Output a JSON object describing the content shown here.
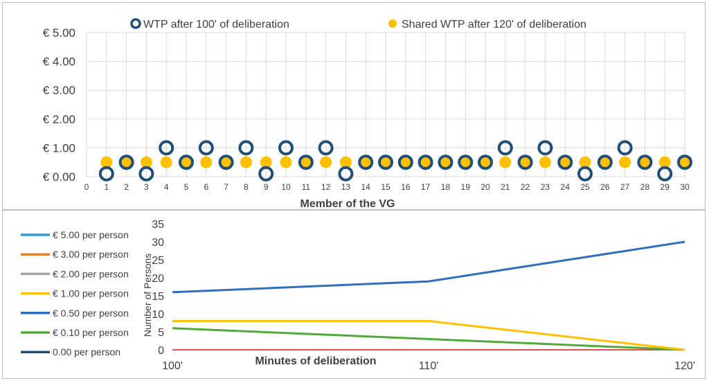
{
  "colors": {
    "wtp_individual": "#1f4e79",
    "wtp_shared": "#ffc000",
    "line_5_00": "#2e9bd6",
    "line_3_00": "#ed7d31",
    "line_2_00": "#a5a5a5",
    "line_1_00": "#ffc000",
    "line_0_50": "#2f6ebf",
    "line_0_10": "#4faa3a",
    "line_0_00": "#1f4e79",
    "axis_zero_line": "#e03030",
    "grid": "#d9d9d9"
  },
  "chart_data": [
    {
      "type": "scatter",
      "xlabel": "Member of the VG",
      "ylabel": "",
      "xlim": [
        0,
        30
      ],
      "ylim": [
        0,
        5
      ],
      "x_ticks": [
        "0",
        "1",
        "2",
        "3",
        "4",
        "5",
        "6",
        "7",
        "8",
        "9",
        "10",
        "11",
        "12",
        "13",
        "14",
        "15",
        "16",
        "17",
        "18",
        "19",
        "20",
        "21",
        "22",
        "23",
        "24",
        "25",
        "26",
        "27",
        "28",
        "29",
        "30"
      ],
      "y_ticks": [
        "€ 0.00",
        "€ 1.00",
        "€ 2.00",
        "€ 3.00",
        "€ 4.00",
        "€ 5.00"
      ],
      "y_tick_values": [
        0,
        1,
        2,
        3,
        4,
        5
      ],
      "grid": true,
      "legend_position": "top",
      "series": [
        {
          "name": "WTP after 100' of deliberation",
          "marker": "hollow-circle",
          "x": [
            1,
            2,
            3,
            4,
            5,
            6,
            7,
            8,
            9,
            10,
            11,
            12,
            13,
            14,
            15,
            16,
            17,
            18,
            19,
            20,
            21,
            22,
            23,
            24,
            25,
            26,
            27,
            28,
            29,
            30
          ],
          "values": [
            0.1,
            0.5,
            0.1,
            1.0,
            0.5,
            1.0,
            0.5,
            1.0,
            0.1,
            1.0,
            0.5,
            1.0,
            0.1,
            0.5,
            0.5,
            0.5,
            0.5,
            0.5,
            0.5,
            0.5,
            1.0,
            0.5,
            1.0,
            0.5,
            0.1,
            0.5,
            1.0,
            0.5,
            0.1,
            0.5
          ]
        },
        {
          "name": "Shared WTP after 120' of deliberation",
          "marker": "filled-circle",
          "x": [
            1,
            2,
            3,
            4,
            5,
            6,
            7,
            8,
            9,
            10,
            11,
            12,
            13,
            14,
            15,
            16,
            17,
            18,
            19,
            20,
            21,
            22,
            23,
            24,
            25,
            26,
            27,
            28,
            29,
            30
          ],
          "values": [
            0.5,
            0.5,
            0.5,
            0.5,
            0.5,
            0.5,
            0.5,
            0.5,
            0.5,
            0.5,
            0.5,
            0.5,
            0.5,
            0.5,
            0.5,
            0.5,
            0.5,
            0.5,
            0.5,
            0.5,
            0.5,
            0.5,
            0.5,
            0.5,
            0.5,
            0.5,
            0.5,
            0.5,
            0.5,
            0.5
          ]
        }
      ]
    },
    {
      "type": "line",
      "xlabel": "Minutes of deliberation",
      "ylabel": "Number of Persons",
      "categories": [
        "100'",
        "110'",
        "120'"
      ],
      "ylim": [
        0,
        35
      ],
      "y_ticks": [
        "0",
        "5",
        "10",
        "15",
        "20",
        "25",
        "30",
        "35"
      ],
      "y_tick_values": [
        0,
        5,
        10,
        15,
        20,
        25,
        30,
        35
      ],
      "grid": false,
      "legend_position": "left",
      "series": [
        {
          "name": "€ 5.00 per person",
          "values": [
            0,
            0,
            0
          ]
        },
        {
          "name": "€ 3.00 per person",
          "values": [
            0,
            0,
            0
          ]
        },
        {
          "name": "€ 2.00 per person",
          "values": [
            0,
            0,
            0
          ]
        },
        {
          "name": "€ 1.00 per person",
          "values": [
            8,
            8,
            0
          ]
        },
        {
          "name": "€ 0.50 per person",
          "values": [
            16,
            19,
            30
          ]
        },
        {
          "name": "€ 0.10 per person",
          "values": [
            6,
            3,
            0
          ]
        },
        {
          "name": "0.00 per person",
          "values": [
            0,
            0,
            0
          ]
        }
      ]
    }
  ]
}
